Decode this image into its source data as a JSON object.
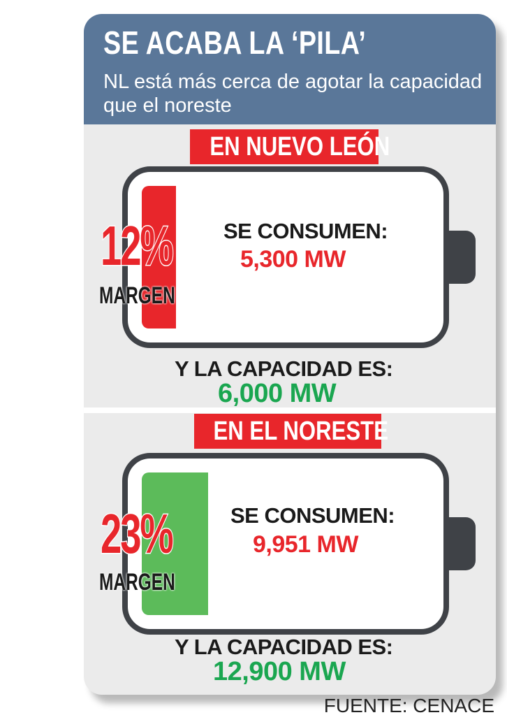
{
  "header": {
    "title": "SE ACABA LA ‘PILA’",
    "subtitle": "NL está más cerca de agotar la capacidad que el noreste"
  },
  "sections": [
    {
      "tag": "EN NUEVO LEÓN",
      "margin_percent": "12%",
      "margin_fraction": 0.12,
      "margin_label": "MARGEN",
      "consume_label": "SE CONSUMEN:",
      "consume_value": "5,300 MW",
      "capacity_label": "Y LA CAPACIDAD ES:",
      "capacity_value": "6,000 MW",
      "fill_color": "#e8262b"
    },
    {
      "tag": "EN EL NORESTE",
      "margin_percent": "23%",
      "margin_fraction": 0.23,
      "margin_label": "MARGEN",
      "consume_label": "SE CONSUMEN:",
      "consume_value": "9,951 MW",
      "capacity_label": "Y LA CAPACIDAD ES:",
      "capacity_value": "12,900 MW",
      "fill_color": "#5cbb5a"
    }
  ],
  "source": "FUENTE: CENACE",
  "colors": {
    "header_bg": "#5a7799",
    "tag_bg": "#e8262b",
    "battery_outline": "#3f4247",
    "capacity_green": "#1aa650",
    "consume_red": "#e8262b"
  }
}
